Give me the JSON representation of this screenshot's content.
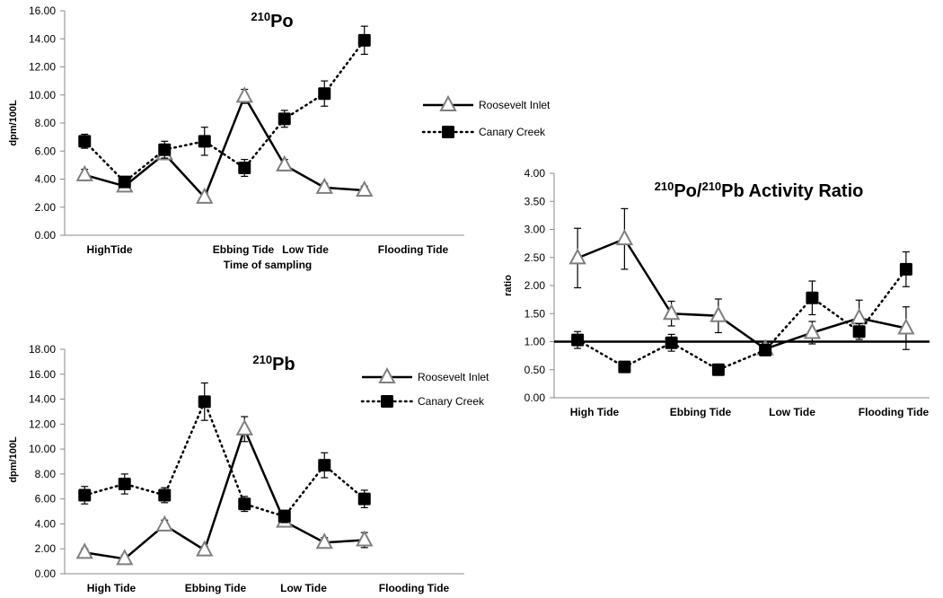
{
  "chart_data": [
    {
      "id": "po",
      "type": "line",
      "title": {
        "sup": "210",
        "text": "Po"
      },
      "ylabel": "dpm/100L",
      "xlabel": "Time of sampling",
      "ylim": [
        0,
        16
      ],
      "yticks": [
        "0.00",
        "2.00",
        "4.00",
        "6.00",
        "8.00",
        "10.00",
        "12.00",
        "14.00",
        "16.00"
      ],
      "x_tick_labels": [
        "HighTide",
        "Ebbing Tide",
        "Low Tide",
        "Flooding Tide"
      ],
      "point_count": 10,
      "series": [
        {
          "name": "Roosevelt Inlet",
          "marker": "triangle",
          "line": "solid",
          "values": [
            4.3,
            3.5,
            5.8,
            2.7,
            9.9,
            5.0,
            3.4,
            3.2,
            null,
            null
          ],
          "errors": [
            0.4,
            0.3,
            0.4,
            0.3,
            0.5,
            0.4,
            0.3,
            0.3,
            null,
            null
          ]
        },
        {
          "name": "Canary Creek",
          "marker": "square",
          "line": "dotted",
          "values": [
            6.7,
            3.8,
            6.1,
            6.7,
            4.8,
            8.3,
            10.1,
            13.9,
            null,
            null
          ],
          "errors": [
            0.5,
            0.3,
            0.6,
            1.0,
            0.6,
            0.6,
            0.9,
            1.0,
            null,
            null
          ]
        }
      ]
    },
    {
      "id": "pb",
      "type": "line",
      "title": {
        "sup": "210",
        "text": "Pb"
      },
      "ylabel": "dpm/100L",
      "ylim": [
        0,
        18
      ],
      "yticks": [
        "0.00",
        "2.00",
        "4.00",
        "6.00",
        "8.00",
        "10.00",
        "12.00",
        "14.00",
        "16.00",
        "18.00"
      ],
      "x_tick_labels": [
        "High Tide",
        "Ebbing Tide",
        "Low Tide",
        "Flooding Tide"
      ],
      "point_count": 10,
      "series": [
        {
          "name": "Roosevelt Inlet",
          "marker": "triangle",
          "line": "solid",
          "values": [
            1.7,
            1.2,
            3.9,
            1.9,
            11.6,
            4.2,
            2.5,
            2.7,
            null,
            null
          ],
          "errors": [
            0.3,
            0.3,
            0.4,
            0.3,
            1.0,
            0.4,
            0.4,
            0.6,
            null,
            null
          ]
        },
        {
          "name": "Canary Creek",
          "marker": "square",
          "line": "dotted",
          "values": [
            6.3,
            7.2,
            6.3,
            13.8,
            5.6,
            4.6,
            8.7,
            6.0,
            null,
            null
          ],
          "errors": [
            0.7,
            0.8,
            0.6,
            1.5,
            0.6,
            0.5,
            1.0,
            0.7,
            null,
            null
          ]
        }
      ]
    },
    {
      "id": "ratio",
      "type": "line",
      "title": {
        "sup1": "210",
        "text1": "Po/",
        "sup2": "210",
        "text2": "Pb Activity Ratio"
      },
      "ylabel": "ratio",
      "ylim": [
        0,
        4
      ],
      "yticks": [
        "0.00",
        "0.50",
        "1.00",
        "1.50",
        "2.00",
        "2.50",
        "3.00",
        "3.50",
        "4.00"
      ],
      "x_tick_labels": [
        "High Tide",
        "Ebbing Tide",
        "Low Tide",
        "Flooding Tide"
      ],
      "point_count": 8,
      "reference_line": 1.0,
      "series": [
        {
          "name": "Roosevelt Inlet",
          "marker": "triangle",
          "line": "solid",
          "values": [
            2.49,
            2.83,
            1.5,
            1.46,
            0.87,
            1.16,
            1.42,
            1.24
          ],
          "errors": [
            0.53,
            0.54,
            0.22,
            0.3,
            0.1,
            0.2,
            0.32,
            0.38
          ]
        },
        {
          "name": "Canary Creek",
          "marker": "square",
          "line": "dotted",
          "values": [
            1.03,
            0.55,
            0.98,
            0.5,
            0.85,
            1.78,
            1.18,
            2.29
          ],
          "errors": [
            0.15,
            0.06,
            0.15,
            0.06,
            0.08,
            0.3,
            0.14,
            0.31
          ]
        }
      ]
    }
  ],
  "legend": {
    "entries": [
      "Roosevelt Inlet",
      "Canary Creek"
    ]
  }
}
